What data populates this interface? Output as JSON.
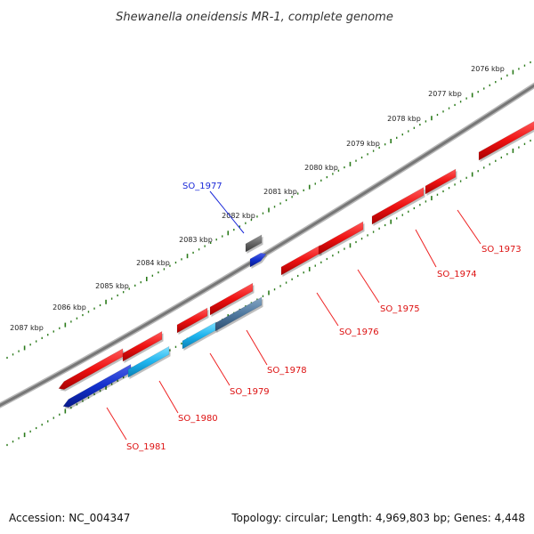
{
  "title": "Shewanella oneidensis MR-1, complete genome",
  "footer": {
    "accession": "Accession: NC_004347",
    "summary": "Topology: circular; Length: 4,969,803 bp; Genes: 4,448"
  },
  "colors": {
    "forward_gene": "#ee1111",
    "reverse_gene": "#1133cc",
    "highlight": "#2233ee",
    "ruler": "#2a7a1a",
    "backbone": "#7a7a7a",
    "label_line": "#ee2222"
  },
  "kbp_ticks": [
    "2076 kbp",
    "2077 kbp",
    "2078 kbp",
    "2079 kbp",
    "2080 kbp",
    "2081 kbp",
    "2082 kbp",
    "2083 kbp",
    "2084 kbp",
    "2085 kbp",
    "2086 kbp",
    "2087 kbp"
  ],
  "genes": {
    "highlight": "SO_1977",
    "labels": [
      "SO_1973",
      "SO_1974",
      "SO_1975",
      "SO_1976",
      "SO_1978",
      "SO_1979",
      "SO_1980",
      "SO_1981"
    ]
  }
}
